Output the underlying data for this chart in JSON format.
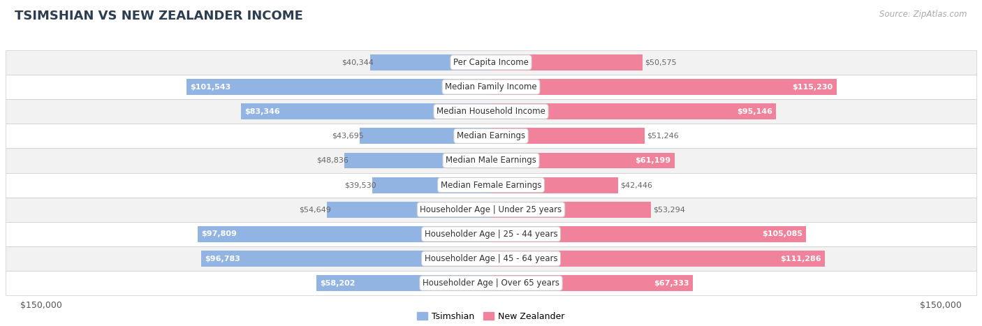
{
  "title": "TSIMSHIAN VS NEW ZEALANDER INCOME",
  "source": "Source: ZipAtlas.com",
  "categories": [
    "Per Capita Income",
    "Median Family Income",
    "Median Household Income",
    "Median Earnings",
    "Median Male Earnings",
    "Median Female Earnings",
    "Householder Age | Under 25 years",
    "Householder Age | 25 - 44 years",
    "Householder Age | 45 - 64 years",
    "Householder Age | Over 65 years"
  ],
  "tsimshian_values": [
    40344,
    101543,
    83346,
    43695,
    48836,
    39530,
    54649,
    97809,
    96783,
    58202
  ],
  "newzealander_values": [
    50575,
    115230,
    95146,
    51246,
    61199,
    42446,
    53294,
    105085,
    111286,
    67333
  ],
  "tsimshian_color": "#92B4E3",
  "newzealander_color": "#F0829B",
  "label_color_outer": "#888888",
  "bar_height": 0.65,
  "max_value": 150000,
  "background_color": "#FFFFFF",
  "row_bg_colors": [
    "#F2F2F2",
    "#FFFFFF"
  ],
  "row_border_color": "#CCCCCC",
  "title_fontsize": 13,
  "source_fontsize": 8.5,
  "value_fontsize": 8,
  "cat_fontsize": 8.5,
  "legend_labels": [
    "Tsimshian",
    "New Zealander"
  ],
  "axis_label_left": "$150,000",
  "axis_label_right": "$150,000",
  "tsim_inner_threshold": 55000,
  "nz_inner_threshold": 55000
}
